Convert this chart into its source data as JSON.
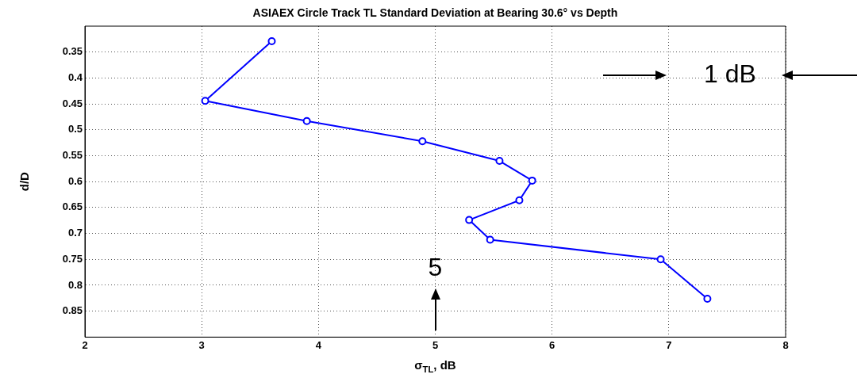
{
  "chart_data": {
    "type": "line",
    "title": "ASIAEX Circle Track TL Standard Deviation at Bearing 30.6° vs Depth",
    "xlabel": "σ$_{TL}$, dB",
    "ylabel": "d/D",
    "series": [
      {
        "color": "#0000ff",
        "x": [
          3.6,
          3.03,
          3.9,
          4.89,
          5.55,
          5.83,
          5.72,
          5.29,
          5.47,
          6.93,
          7.33
        ],
        "values": [
          0.329,
          0.444,
          0.483,
          0.522,
          0.56,
          0.598,
          0.636,
          0.674,
          0.712,
          0.75,
          0.826
        ]
      }
    ],
    "xlim": [
      2,
      8
    ],
    "xticks": [
      2,
      3,
      4,
      5,
      6,
      7,
      8
    ],
    "ylim": [
      0.9,
      0.3
    ],
    "yticks": [
      0.35,
      0.4,
      0.45,
      0.5,
      0.55,
      0.6,
      0.65,
      0.7,
      0.75,
      0.8,
      0.85
    ],
    "annotations": [
      "1 dB",
      "5"
    ],
    "grid": true,
    "legend": false,
    "marker": "circle",
    "line_style": "solid"
  }
}
